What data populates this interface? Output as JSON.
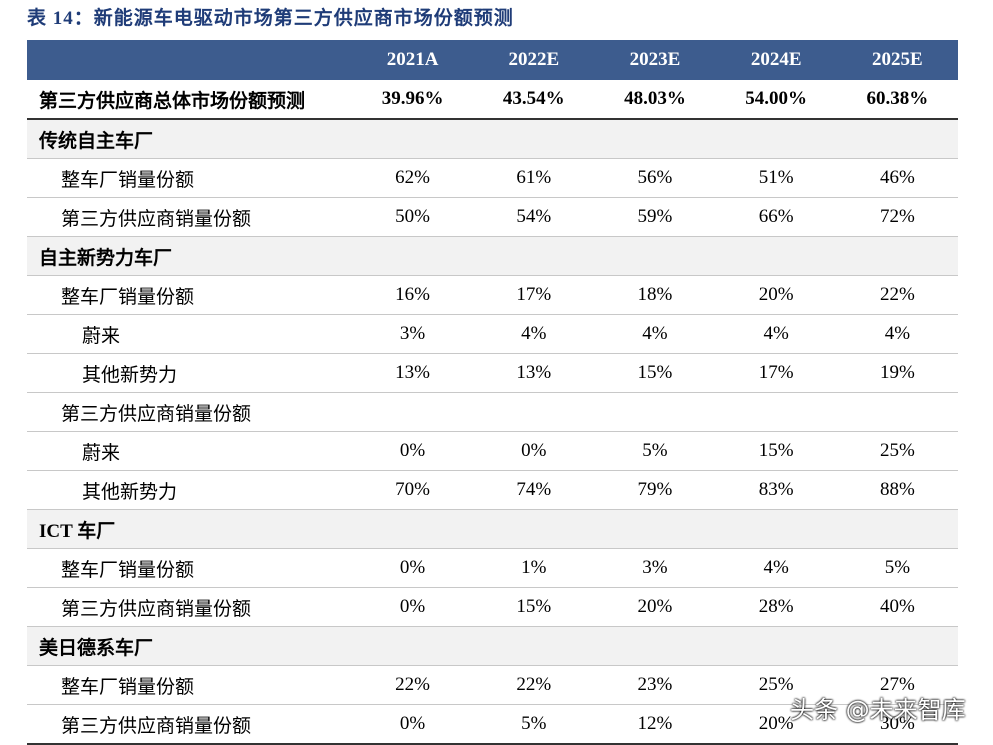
{
  "header": {
    "title": "表 14：新能源车电驱动市场第三方供应商市场份额预测"
  },
  "table": {
    "columns": [
      "",
      "2021A",
      "2022E",
      "2023E",
      "2024E",
      "2025E"
    ],
    "rows": [
      [
        "第三方供应商总体市场份额预测",
        "39.96%",
        "43.54%",
        "48.03%",
        "54.00%",
        "60.38%"
      ],
      [
        "传统自主车厂"
      ],
      [
        "整车厂销量份额",
        "62%",
        "61%",
        "56%",
        "51%",
        "46%"
      ],
      [
        "第三方供应商销量份额",
        "50%",
        "54%",
        "59%",
        "66%",
        "72%"
      ],
      [
        "自主新势力车厂"
      ],
      [
        "整车厂销量份额",
        "16%",
        "17%",
        "18%",
        "20%",
        "22%"
      ],
      [
        "蔚来",
        "3%",
        "4%",
        "4%",
        "4%",
        "4%"
      ],
      [
        "其他新势力",
        "13%",
        "13%",
        "15%",
        "17%",
        "19%"
      ],
      [
        "第三方供应商销量份额"
      ],
      [
        "蔚来",
        "0%",
        "0%",
        "5%",
        "15%",
        "25%"
      ],
      [
        "其他新势力",
        "70%",
        "74%",
        "79%",
        "83%",
        "88%"
      ],
      [
        "ICT 车厂"
      ],
      [
        "整车厂销量份额",
        "0%",
        "1%",
        "3%",
        "4%",
        "5%"
      ],
      [
        "第三方供应商销量份额",
        "0%",
        "15%",
        "20%",
        "28%",
        "40%"
      ],
      [
        "美日德系车厂"
      ],
      [
        "整车厂销量份额",
        "22%",
        "22%",
        "23%",
        "25%",
        "27%"
      ],
      [
        "第三方供应商销量份额",
        "0%",
        "5%",
        "12%",
        "20%",
        "30%"
      ]
    ]
  },
  "watermark": "头条 @未来智库"
}
